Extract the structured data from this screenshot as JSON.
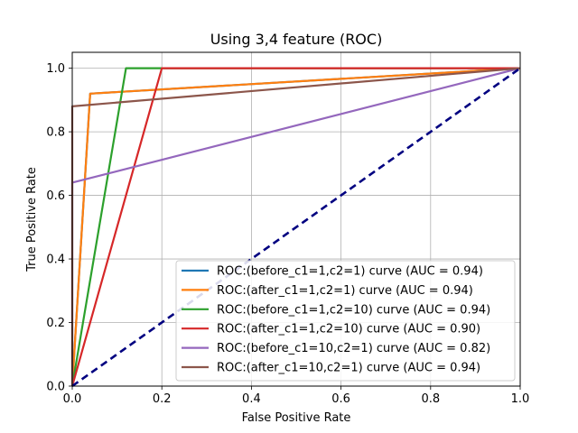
{
  "chart_data": {
    "type": "line",
    "title": "Using 3,4 feature (ROC)",
    "xlabel": "False Positive Rate",
    "ylabel": "True Positive Rate",
    "xlim": [
      0.0,
      1.0
    ],
    "ylim": [
      0.0,
      1.05
    ],
    "xticks": [
      0.0,
      0.2,
      0.4,
      0.6,
      0.8,
      1.0
    ],
    "yticks": [
      0.0,
      0.2,
      0.4,
      0.6,
      0.8,
      1.0
    ],
    "xtick_labels": [
      "0.0",
      "0.2",
      "0.4",
      "0.6",
      "0.8",
      "1.0"
    ],
    "ytick_labels": [
      "0.0",
      "0.2",
      "0.4",
      "0.6",
      "0.8",
      "1.0"
    ],
    "grid": true,
    "legend_position": "lower-right",
    "series": [
      {
        "name": "ROC:(before_c1=1,c2=1) curve (AUC = 0.94)",
        "color": "#1f77b4",
        "x": [
          0,
          0.04,
          1
        ],
        "y": [
          0,
          0.92,
          1
        ]
      },
      {
        "name": "ROC:(after_c1=1,c2=1) curve (AUC = 0.94)",
        "color": "#ff7f0e",
        "x": [
          0,
          0.04,
          1
        ],
        "y": [
          0,
          0.92,
          1
        ]
      },
      {
        "name": "ROC:(before_c1=1,c2=10) curve (AUC = 0.94)",
        "color": "#2ca02c",
        "x": [
          0,
          0.12,
          1
        ],
        "y": [
          0,
          1,
          1
        ]
      },
      {
        "name": "ROC:(after_c1=1,c2=10) curve (AUC = 0.90)",
        "color": "#d62728",
        "x": [
          0,
          0.2,
          1
        ],
        "y": [
          0,
          1,
          1
        ]
      },
      {
        "name": "ROC:(before_c1=10,c2=1) curve (AUC = 0.82)",
        "color": "#9467bd",
        "x": [
          0,
          0,
          1
        ],
        "y": [
          0,
          0.64,
          1
        ]
      },
      {
        "name": "ROC:(after_c1=10,c2=1) curve (AUC = 0.94)",
        "color": "#8c564b",
        "x": [
          0,
          0,
          1
        ],
        "y": [
          0,
          0.88,
          1
        ]
      }
    ],
    "diagonal": {
      "color": "#000080",
      "x": [
        0,
        1
      ],
      "y": [
        0,
        1
      ],
      "style": "dashed"
    }
  }
}
